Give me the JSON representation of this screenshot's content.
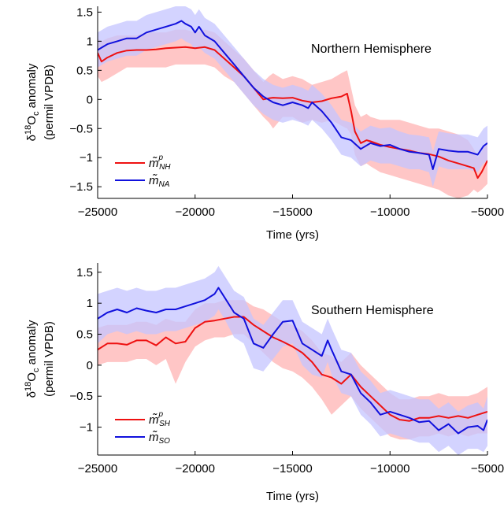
{
  "chart_data": [
    {
      "type": "line",
      "annotation": "Northern Hemisphere",
      "xlabel": "Time (yrs)",
      "ylabel_line1_prefix": "δ",
      "ylabel_line1_sup": "18",
      "ylabel_line1_main": "O",
      "ylabel_line1_sub": "c",
      "ylabel_line1_suffix": " anomaly",
      "ylabel_line2": "(permil VPDB)",
      "xlim": [
        -25000,
        -5000
      ],
      "ylim": [
        -1.7,
        1.6
      ],
      "xticks": [
        -25000,
        -20000,
        -15000,
        -10000,
        -5000
      ],
      "xtick_labels": [
        "−25000",
        "−20000",
        "−15000",
        "−10000",
        "−5000"
      ],
      "yticks": [
        -1.5,
        -1,
        -0.5,
        0,
        0.5,
        1,
        1.5
      ],
      "ytick_labels": [
        "−1.5",
        "−1",
        "−0.5",
        "0",
        "0.5",
        "1",
        "1.5"
      ],
      "grid": false,
      "legend_position": "bottom-left",
      "series": [
        {
          "name": "m̃ᵖNH",
          "legend_main": "m̃",
          "legend_sup": "p",
          "legend_sub": "NH",
          "color": "#ee1111",
          "band_color": "#ffbcbc",
          "x": [
            -25000,
            -24800,
            -24500,
            -24000,
            -23500,
            -23000,
            -22500,
            -22000,
            -21500,
            -21000,
            -20500,
            -20000,
            -19500,
            -19000,
            -18500,
            -18000,
            -17500,
            -17000,
            -16500,
            -16200,
            -16000,
            -15500,
            -15000,
            -14500,
            -14000,
            -13500,
            -13000,
            -12500,
            -12200,
            -12000,
            -11800,
            -11500,
            -11200,
            -11000,
            -10500,
            -10000,
            -9500,
            -9000,
            -8500,
            -8000,
            -7500,
            -7000,
            -6500,
            -6000,
            -5700,
            -5500,
            -5300,
            -5000
          ],
          "y": [
            0.8,
            0.65,
            0.72,
            0.8,
            0.84,
            0.85,
            0.85,
            0.86,
            0.88,
            0.89,
            0.9,
            0.88,
            0.9,
            0.85,
            0.7,
            0.55,
            0.4,
            0.2,
            0.0,
            0.02,
            0.03,
            0.02,
            0.03,
            -0.02,
            -0.05,
            -0.03,
            0.02,
            0.05,
            0.1,
            -0.2,
            -0.55,
            -0.75,
            -0.7,
            -0.72,
            -0.78,
            -0.82,
            -0.85,
            -0.88,
            -0.92,
            -0.94,
            -0.98,
            -1.05,
            -1.1,
            -1.15,
            -1.18,
            -1.35,
            -1.25,
            -1.05
          ],
          "band_lower": [
            0.4,
            0.3,
            0.35,
            0.45,
            0.55,
            0.55,
            0.55,
            0.55,
            0.55,
            0.6,
            0.6,
            0.6,
            0.6,
            0.55,
            0.4,
            0.3,
            0.1,
            -0.1,
            -0.3,
            -0.4,
            -0.5,
            -0.3,
            -0.3,
            -0.4,
            -0.35,
            -0.4,
            -0.35,
            -0.45,
            -0.5,
            -0.6,
            -0.95,
            -1.15,
            -1.1,
            -1.15,
            -1.25,
            -1.3,
            -1.35,
            -1.4,
            -1.45,
            -1.5,
            -1.55,
            -1.65,
            -1.7,
            -1.65,
            -1.55,
            -1.6,
            -1.55,
            -1.45
          ],
          "band_upper": [
            1.05,
            1.0,
            1.05,
            1.1,
            1.1,
            1.1,
            1.15,
            1.15,
            1.15,
            1.2,
            1.2,
            1.15,
            1.2,
            1.15,
            1.0,
            0.85,
            0.7,
            0.5,
            0.3,
            0.4,
            0.45,
            0.35,
            0.4,
            0.35,
            0.25,
            0.3,
            0.35,
            0.45,
            0.5,
            0.2,
            -0.1,
            -0.3,
            -0.25,
            -0.3,
            -0.35,
            -0.35,
            -0.35,
            -0.4,
            -0.45,
            -0.5,
            -0.5,
            -0.55,
            -0.6,
            -0.7,
            -0.85,
            -1.0,
            -0.9,
            -0.7
          ]
        },
        {
          "name": "m̃NA",
          "legend_main": "m̃",
          "legend_sup": "",
          "legend_sub": "NA",
          "color": "#1111dd",
          "band_color": "#c4c4ff",
          "x": [
            -25000,
            -24500,
            -24000,
            -23500,
            -23000,
            -22500,
            -22000,
            -21500,
            -21000,
            -20700,
            -20500,
            -20200,
            -20000,
            -19800,
            -19500,
            -19000,
            -18500,
            -18000,
            -17500,
            -17000,
            -16500,
            -16000,
            -15500,
            -15000,
            -14500,
            -14200,
            -14000,
            -13500,
            -13000,
            -12500,
            -12000,
            -11500,
            -11000,
            -10500,
            -10000,
            -9500,
            -9000,
            -8500,
            -8000,
            -7800,
            -7500,
            -7000,
            -6500,
            -6000,
            -5500,
            -5200,
            -5000
          ],
          "y": [
            0.85,
            0.95,
            1.0,
            1.05,
            1.05,
            1.15,
            1.2,
            1.25,
            1.3,
            1.35,
            1.3,
            1.25,
            1.15,
            1.25,
            1.1,
            1.0,
            0.8,
            0.6,
            0.4,
            0.2,
            0.05,
            -0.05,
            -0.1,
            -0.05,
            -0.1,
            -0.15,
            -0.05,
            -0.2,
            -0.4,
            -0.65,
            -0.7,
            -0.85,
            -0.75,
            -0.8,
            -0.78,
            -0.85,
            -0.9,
            -0.92,
            -0.95,
            -1.2,
            -0.85,
            -0.88,
            -0.9,
            -0.9,
            -0.95,
            -0.8,
            -0.75
          ],
          "band_lower": [
            0.55,
            0.65,
            0.7,
            0.75,
            0.75,
            0.85,
            0.9,
            0.95,
            1.0,
            1.05,
            1.0,
            0.95,
            0.85,
            0.9,
            0.8,
            0.7,
            0.5,
            0.3,
            0.1,
            -0.1,
            -0.25,
            -0.35,
            -0.4,
            -0.35,
            -0.4,
            -0.45,
            -0.35,
            -0.5,
            -0.7,
            -0.95,
            -1.0,
            -1.15,
            -1.05,
            -1.1,
            -1.1,
            -1.15,
            -1.2,
            -1.2,
            -1.25,
            -1.5,
            -1.15,
            -1.2,
            -1.2,
            -1.2,
            -1.25,
            -1.1,
            -1.05
          ],
          "band_upper": [
            1.15,
            1.25,
            1.3,
            1.35,
            1.35,
            1.45,
            1.5,
            1.55,
            1.6,
            1.6,
            1.6,
            1.55,
            1.45,
            1.55,
            1.4,
            1.3,
            1.1,
            0.9,
            0.7,
            0.5,
            0.35,
            0.25,
            0.2,
            0.25,
            0.2,
            0.15,
            0.25,
            0.1,
            -0.1,
            -0.35,
            -0.4,
            -0.55,
            -0.45,
            -0.5,
            -0.48,
            -0.55,
            -0.6,
            -0.62,
            -0.65,
            -0.9,
            -0.55,
            -0.58,
            -0.6,
            -0.6,
            -0.65,
            -0.5,
            -0.45
          ]
        }
      ]
    },
    {
      "type": "line",
      "annotation": "Southern Hemisphere",
      "xlabel": "Time (yrs)",
      "ylabel_line1_prefix": "δ",
      "ylabel_line1_sup": "18",
      "ylabel_line1_main": "O",
      "ylabel_line1_sub": "c",
      "ylabel_line1_suffix": " anomaly",
      "ylabel_line2": "(permil VPDB)",
      "xlim": [
        -25000,
        -5000
      ],
      "ylim": [
        -1.45,
        1.65
      ],
      "xticks": [
        -25000,
        -20000,
        -15000,
        -10000,
        -5000
      ],
      "xtick_labels": [
        "−25000",
        "−20000",
        "−15000",
        "−10000",
        "−5000"
      ],
      "yticks": [
        -1,
        -0.5,
        0,
        0.5,
        1,
        1.5
      ],
      "ytick_labels": [
        "−1",
        "−0.5",
        "0",
        "0.5",
        "1",
        "1.5"
      ],
      "grid": false,
      "legend_position": "bottom-left",
      "series": [
        {
          "name": "m̃ᵖSH",
          "legend_main": "m̃",
          "legend_sup": "p",
          "legend_sub": "SH",
          "color": "#ee1111",
          "band_color": "#ffbcbc",
          "x": [
            -25000,
            -24500,
            -24000,
            -23500,
            -23000,
            -22500,
            -22000,
            -21500,
            -21000,
            -20500,
            -20000,
            -19500,
            -19000,
            -18500,
            -18000,
            -17500,
            -17000,
            -16500,
            -16000,
            -15500,
            -15000,
            -14500,
            -14000,
            -13500,
            -13000,
            -12500,
            -12000,
            -11500,
            -11000,
            -10500,
            -10000,
            -9500,
            -9000,
            -8500,
            -8000,
            -7500,
            -7000,
            -6500,
            -6000,
            -5500,
            -5000
          ],
          "y": [
            0.25,
            0.35,
            0.35,
            0.33,
            0.4,
            0.4,
            0.32,
            0.45,
            0.35,
            0.38,
            0.6,
            0.7,
            0.72,
            0.75,
            0.78,
            0.78,
            0.65,
            0.55,
            0.45,
            0.38,
            0.3,
            0.2,
            0.05,
            -0.15,
            -0.2,
            -0.3,
            -0.15,
            -0.35,
            -0.5,
            -0.65,
            -0.8,
            -0.88,
            -0.9,
            -0.85,
            -0.85,
            -0.82,
            -0.85,
            -0.82,
            -0.85,
            -0.8,
            -0.75
          ],
          "band_lower": [
            0.0,
            0.05,
            0.05,
            0.05,
            0.1,
            0.1,
            0.0,
            0.1,
            -0.3,
            0.05,
            0.3,
            0.4,
            0.45,
            0.45,
            0.5,
            0.5,
            0.35,
            0.2,
            0.05,
            -0.05,
            -0.1,
            -0.2,
            -0.35,
            -0.55,
            -0.8,
            -0.65,
            -0.5,
            -0.7,
            -0.85,
            -1.0,
            -1.15,
            -1.2,
            -1.2,
            -1.15,
            -1.15,
            -1.1,
            -1.15,
            -1.1,
            -1.15,
            -1.1,
            -1.1
          ],
          "band_upper": [
            0.6,
            0.65,
            0.65,
            0.65,
            0.7,
            0.7,
            0.65,
            0.75,
            0.7,
            0.7,
            0.9,
            1.0,
            1.0,
            1.05,
            1.05,
            1.05,
            0.95,
            0.9,
            0.8,
            0.7,
            0.65,
            0.55,
            0.4,
            0.2,
            0.15,
            0.05,
            0.2,
            0.0,
            -0.15,
            -0.3,
            -0.45,
            -0.55,
            -0.55,
            -0.5,
            -0.5,
            -0.45,
            -0.5,
            -0.5,
            -0.5,
            -0.45,
            -0.35
          ]
        },
        {
          "name": "m̃SO",
          "legend_main": "m̃",
          "legend_sup": "",
          "legend_sub": "SO",
          "color": "#1111dd",
          "band_color": "#c4c4ff",
          "x": [
            -25000,
            -24500,
            -24000,
            -23500,
            -23000,
            -22500,
            -22000,
            -21500,
            -21000,
            -20500,
            -20000,
            -19500,
            -19000,
            -18800,
            -18500,
            -18000,
            -17500,
            -17000,
            -16500,
            -16000,
            -15500,
            -15000,
            -14500,
            -14000,
            -13500,
            -13200,
            -13000,
            -12500,
            -12000,
            -11500,
            -11000,
            -10500,
            -10000,
            -9500,
            -9000,
            -8500,
            -8000,
            -7500,
            -7000,
            -6500,
            -6000,
            -5500,
            -5200,
            -5000
          ],
          "y": [
            0.75,
            0.85,
            0.9,
            0.85,
            0.92,
            0.88,
            0.85,
            0.9,
            0.9,
            0.95,
            1.0,
            1.05,
            1.15,
            1.25,
            1.1,
            0.85,
            0.75,
            0.35,
            0.28,
            0.5,
            0.7,
            0.72,
            0.35,
            0.25,
            0.15,
            0.4,
            0.25,
            -0.1,
            -0.15,
            -0.45,
            -0.6,
            -0.8,
            -0.75,
            -0.8,
            -0.85,
            -0.92,
            -0.9,
            -1.05,
            -0.95,
            -1.1,
            -1.0,
            -0.98,
            -1.05,
            -0.88
          ],
          "band_lower": [
            0.35,
            0.5,
            0.55,
            0.5,
            0.55,
            0.5,
            0.5,
            0.55,
            0.55,
            0.6,
            0.65,
            0.7,
            0.8,
            0.9,
            0.75,
            0.45,
            0.35,
            -0.05,
            -0.1,
            0.1,
            0.3,
            0.35,
            0.0,
            -0.15,
            -0.2,
            0.05,
            -0.15,
            -0.45,
            -0.5,
            -0.8,
            -0.95,
            -1.15,
            -1.1,
            -1.15,
            -1.2,
            -1.25,
            -1.25,
            -1.4,
            -1.3,
            -1.45,
            -1.35,
            -1.35,
            -1.4,
            -1.3
          ],
          "band_upper": [
            1.15,
            1.2,
            1.25,
            1.2,
            1.25,
            1.2,
            1.2,
            1.25,
            1.25,
            1.3,
            1.35,
            1.4,
            1.5,
            1.6,
            1.45,
            1.2,
            1.1,
            0.75,
            0.65,
            0.85,
            1.05,
            1.05,
            0.7,
            0.6,
            0.5,
            0.75,
            0.6,
            0.25,
            0.2,
            -0.1,
            -0.25,
            -0.45,
            -0.4,
            -0.45,
            -0.5,
            -0.55,
            -0.55,
            -0.7,
            -0.6,
            -0.75,
            -0.65,
            -0.6,
            -0.7,
            -0.5
          ]
        }
      ]
    }
  ]
}
